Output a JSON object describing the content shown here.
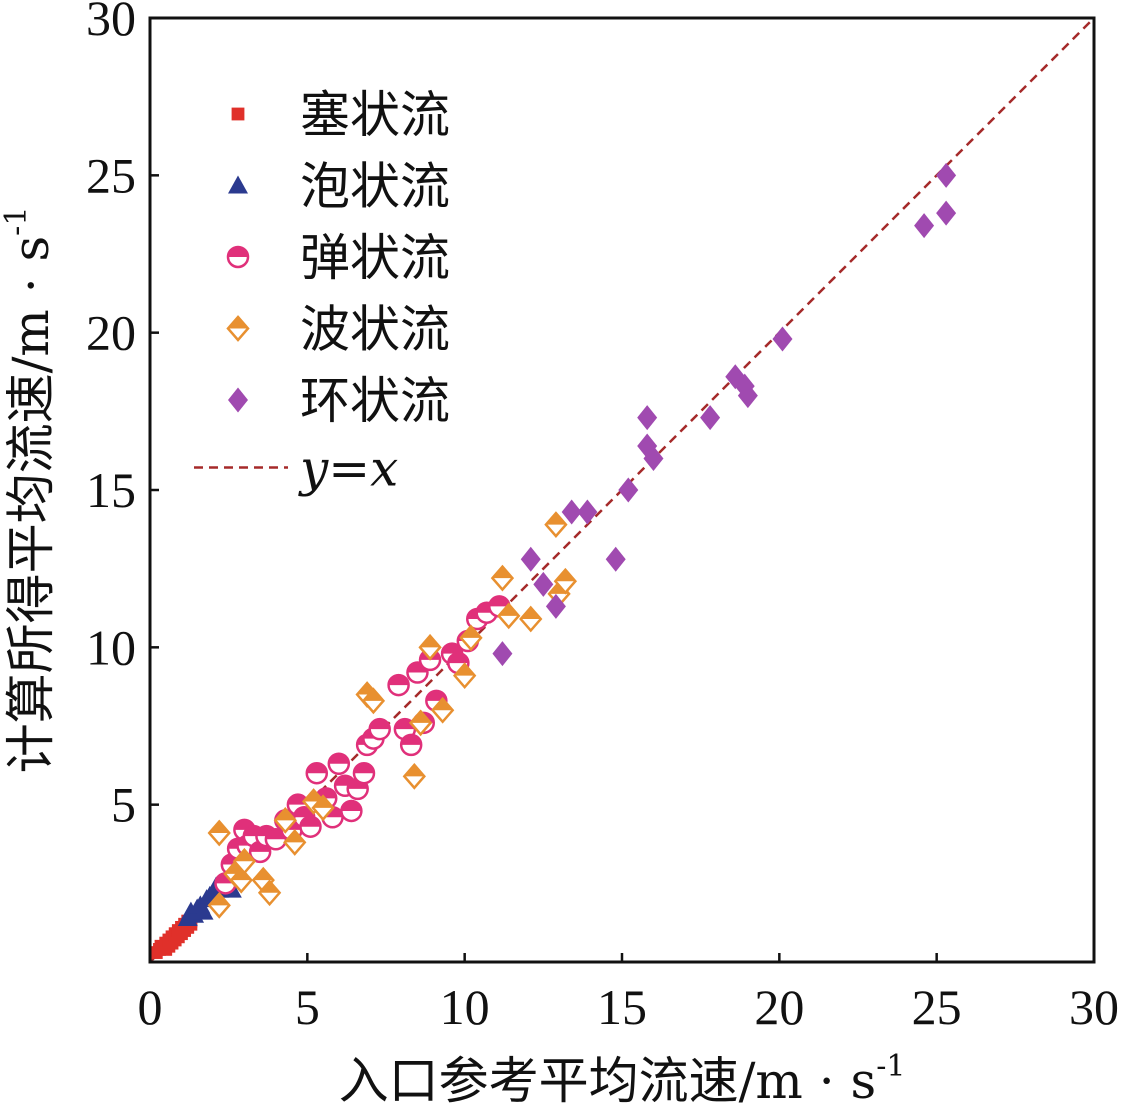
{
  "chart_data": {
    "type": "scatter",
    "title": "",
    "xlabel": "入口参考平均流速/m · s",
    "xlabel_sup": "-1",
    "ylabel": "计算所得平均流速/m · s",
    "ylabel_sup": "-1",
    "xlim": [
      0,
      30
    ],
    "ylim": [
      0,
      30
    ],
    "x_ticks": [
      0,
      5,
      10,
      15,
      20,
      25,
      30
    ],
    "y_ticks": [
      5,
      10,
      15,
      20,
      25,
      30
    ],
    "legend_position": "top-left",
    "reference_line": {
      "label_y": "y",
      "label_eq": "=",
      "label_x": "x",
      "color": "#a52a2a",
      "from": [
        0,
        0
      ],
      "to": [
        30,
        30
      ]
    },
    "series": [
      {
        "name": "塞状流",
        "marker": "square",
        "color": "#e0302a",
        "points": [
          [
            0.2,
            0.3
          ],
          [
            0.3,
            0.4
          ],
          [
            0.35,
            0.5
          ],
          [
            0.4,
            0.45
          ],
          [
            0.5,
            0.6
          ],
          [
            0.5,
            0.4
          ],
          [
            0.6,
            0.7
          ],
          [
            0.6,
            0.5
          ],
          [
            0.7,
            0.8
          ],
          [
            0.7,
            0.6
          ],
          [
            0.8,
            0.9
          ],
          [
            0.8,
            0.7
          ],
          [
            0.9,
            1.0
          ],
          [
            0.9,
            0.8
          ],
          [
            1.0,
            1.1
          ],
          [
            1.0,
            0.9
          ],
          [
            1.1,
            1.2
          ],
          [
            1.1,
            1.0
          ],
          [
            1.2,
            1.3
          ],
          [
            1.2,
            1.1
          ],
          [
            1.3,
            1.3
          ],
          [
            1.3,
            1.2
          ]
        ]
      },
      {
        "name": "泡状流",
        "marker": "triangle",
        "color": "#2b3a8f",
        "points": [
          [
            1.2,
            1.4
          ],
          [
            1.3,
            1.6
          ],
          [
            1.4,
            1.5
          ],
          [
            1.5,
            1.7
          ],
          [
            1.6,
            1.8
          ],
          [
            1.7,
            1.6
          ],
          [
            1.8,
            2.0
          ],
          [
            1.9,
            2.1
          ],
          [
            2.0,
            2.2
          ],
          [
            2.1,
            2.4
          ],
          [
            2.2,
            2.3
          ],
          [
            2.4,
            2.4
          ],
          [
            2.6,
            2.3
          ]
        ]
      },
      {
        "name": "弹状流",
        "marker": "half-circle",
        "color": "#e0307a",
        "points": [
          [
            2.4,
            2.5
          ],
          [
            2.6,
            3.1
          ],
          [
            2.8,
            3.6
          ],
          [
            3.0,
            4.2
          ],
          [
            3.1,
            3.7
          ],
          [
            3.3,
            4.0
          ],
          [
            3.5,
            3.5
          ],
          [
            3.7,
            4.0
          ],
          [
            4.0,
            3.9
          ],
          [
            4.3,
            4.5
          ],
          [
            4.5,
            4.2
          ],
          [
            4.7,
            5.0
          ],
          [
            4.9,
            4.6
          ],
          [
            5.1,
            4.3
          ],
          [
            5.3,
            6.0
          ],
          [
            5.6,
            5.2
          ],
          [
            5.8,
            4.6
          ],
          [
            6.0,
            6.3
          ],
          [
            6.2,
            5.6
          ],
          [
            6.4,
            4.8
          ],
          [
            6.6,
            5.5
          ],
          [
            6.8,
            6.0
          ],
          [
            6.9,
            6.9
          ],
          [
            7.1,
            7.1
          ],
          [
            7.3,
            7.4
          ],
          [
            7.9,
            8.8
          ],
          [
            8.1,
            7.4
          ],
          [
            8.3,
            6.9
          ],
          [
            8.5,
            9.2
          ],
          [
            8.7,
            7.6
          ],
          [
            8.9,
            9.6
          ],
          [
            9.1,
            8.3
          ],
          [
            9.6,
            9.8
          ],
          [
            9.8,
            9.5
          ],
          [
            10.1,
            10.2
          ],
          [
            10.4,
            10.9
          ],
          [
            10.7,
            11.1
          ],
          [
            11.1,
            11.3
          ]
        ]
      },
      {
        "name": "波状流",
        "marker": "half-diamond",
        "color": "#e89030",
        "points": [
          [
            2.2,
            1.8
          ],
          [
            2.2,
            4.1
          ],
          [
            2.7,
            2.8
          ],
          [
            2.9,
            2.6
          ],
          [
            3.0,
            3.2
          ],
          [
            3.6,
            2.6
          ],
          [
            3.8,
            2.2
          ],
          [
            4.3,
            4.5
          ],
          [
            4.6,
            3.8
          ],
          [
            5.2,
            5.1
          ],
          [
            5.5,
            4.9
          ],
          [
            6.9,
            8.5
          ],
          [
            7.1,
            8.3
          ],
          [
            8.4,
            5.9
          ],
          [
            8.6,
            7.6
          ],
          [
            8.9,
            10.0
          ],
          [
            9.3,
            8.0
          ],
          [
            10.0,
            9.1
          ],
          [
            10.2,
            10.3
          ],
          [
            11.2,
            12.2
          ],
          [
            11.4,
            11.0
          ],
          [
            12.1,
            10.9
          ],
          [
            12.9,
            13.9
          ],
          [
            13.0,
            11.7
          ],
          [
            13.2,
            12.1
          ]
        ]
      },
      {
        "name": "环状流",
        "marker": "diamond",
        "color": "#a04ab0",
        "points": [
          [
            11.2,
            9.8
          ],
          [
            12.1,
            12.8
          ],
          [
            12.5,
            12.0
          ],
          [
            12.9,
            11.3
          ],
          [
            13.4,
            14.3
          ],
          [
            13.9,
            14.3
          ],
          [
            14.8,
            12.8
          ],
          [
            15.2,
            15.0
          ],
          [
            15.8,
            17.3
          ],
          [
            15.8,
            16.4
          ],
          [
            16.0,
            16.0
          ],
          [
            17.8,
            17.3
          ],
          [
            18.6,
            18.6
          ],
          [
            18.9,
            18.3
          ],
          [
            19.0,
            18.0
          ],
          [
            20.1,
            19.8
          ],
          [
            24.6,
            23.4
          ],
          [
            25.3,
            23.8
          ],
          [
            25.3,
            25.0
          ]
        ]
      }
    ]
  }
}
